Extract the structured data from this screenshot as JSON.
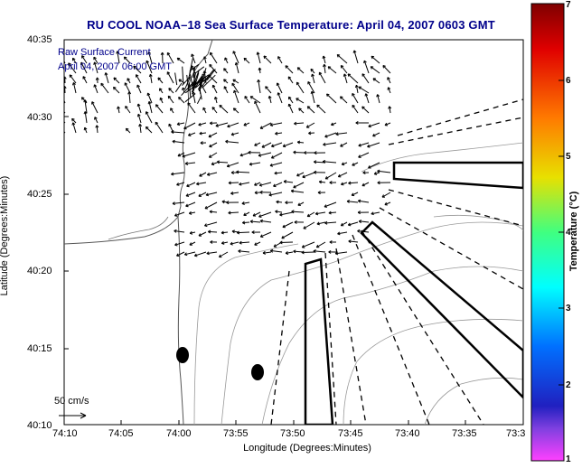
{
  "title": "RU COOL  NOAA–18  Sea Surface Temperature:  April 04, 2007 0603 GMT",
  "legend": {
    "line1": "Raw Surface Current",
    "line2": "April 04, 2007 06:00 GMT"
  },
  "scale_label": "50 cm/s",
  "axes": {
    "ylabel": "Latitude (Degrees:Minutes)",
    "xlabel": "Longitude (Degrees:Minutes)",
    "yticks": [
      "40:35",
      "40:30",
      "40:25",
      "40:20",
      "40:15",
      "40:10"
    ],
    "xticks": [
      "74:10",
      "74:05",
      "74:00",
      "73:55",
      "73:50",
      "73:45",
      "73:40",
      "73:35",
      "73:3"
    ]
  },
  "colorbar": {
    "label": "Temperature (°C)",
    "ticks": [
      "7",
      "6",
      "5",
      "4",
      "3",
      "2",
      "1"
    ]
  }
}
